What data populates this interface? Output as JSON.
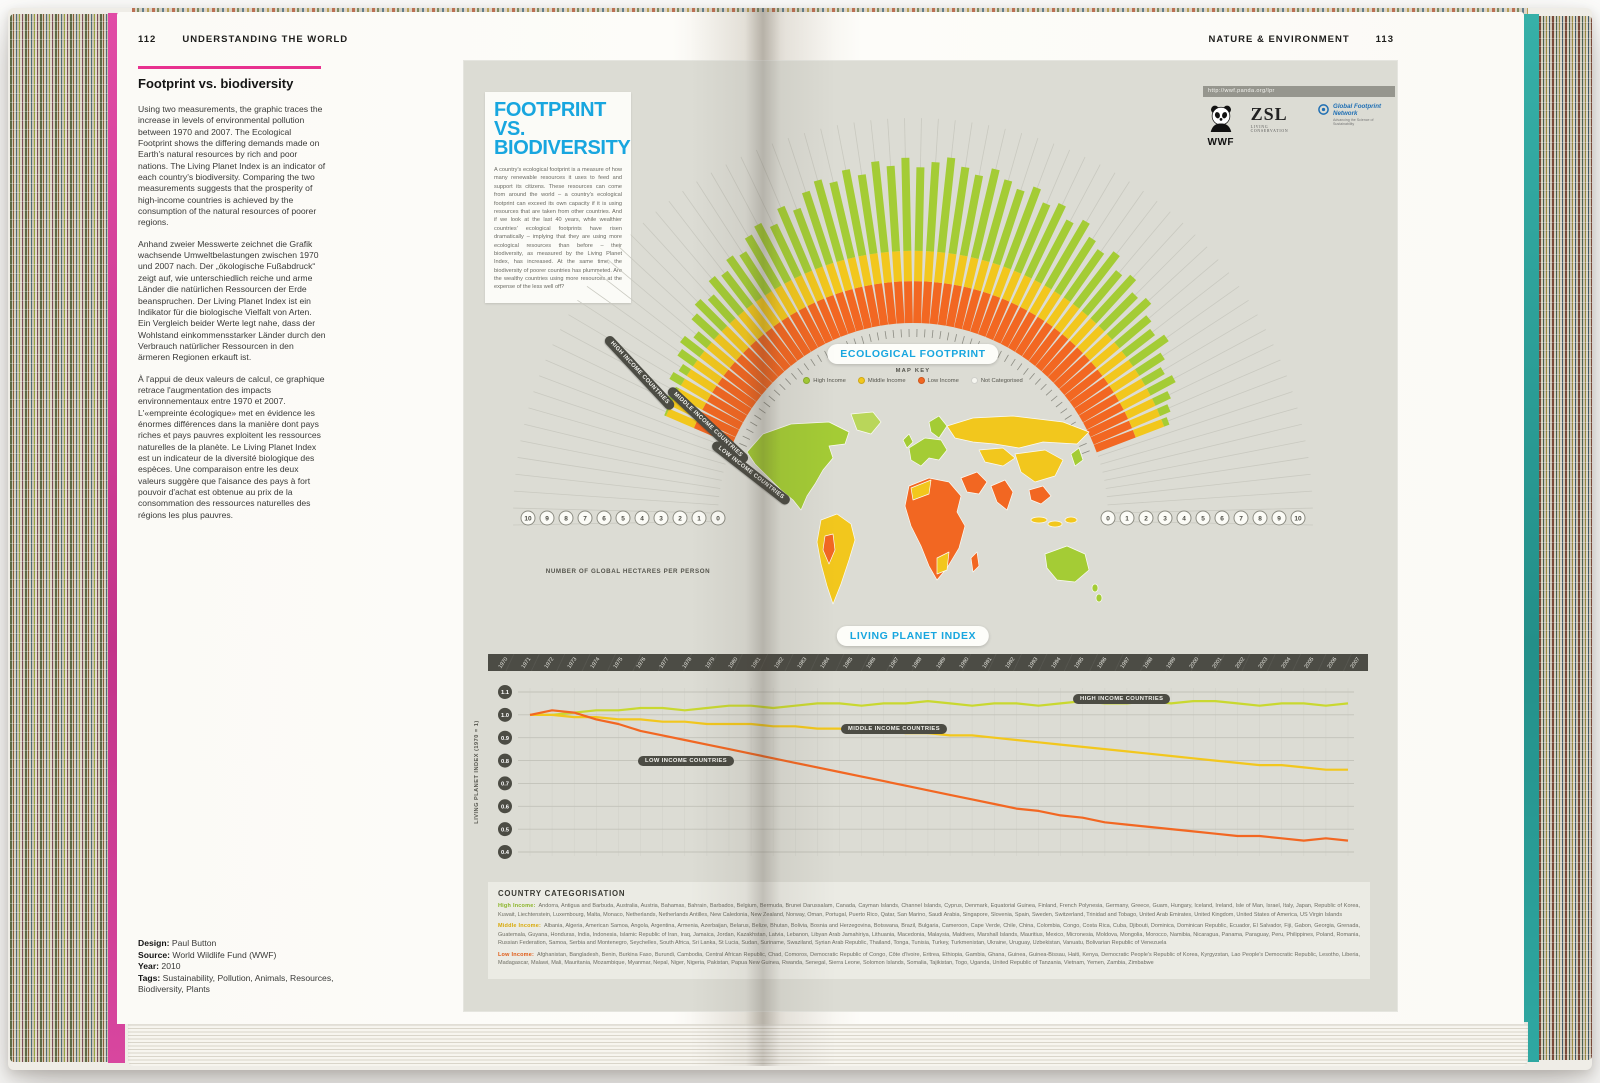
{
  "colors": {
    "accent_pink": "#e8318f",
    "accent_teal": "#2fa8a2",
    "cyan": "#18a6df",
    "high_income": "#a4cc35",
    "high_income_line": "#c9d830",
    "middle_income": "#f2c71d",
    "low_income": "#f26722",
    "panel_bg": "#dcdcd4",
    "dark_pill": "#4c4c44"
  },
  "left_page": {
    "page_number": "112",
    "running_head": "UNDERSTANDING THE WORLD",
    "title": "Footprint vs. biodiversity",
    "body_en": "Using two measurements, the graphic traces the increase in levels of environmental pollution between 1970 and 2007. The Ecological Footprint shows the differing demands made on Earth's natural resources by rich and poor nations. The Living Planet Index is an indicator of each country's biodiversity. Comparing the two measurements suggests that the prosperity of high-income countries is achieved by the consumption of the natural resources of poorer regions.",
    "body_de": "Anhand zweier Messwerte zeichnet die Grafik wachsende Umweltbelastungen zwischen 1970 und 2007 nach. Der „ökologische Fußabdruck“ zeigt auf, wie unterschiedlich reiche und arme Länder die natürlichen Ressourcen der Erde beanspruchen. Der Living Planet Index ist ein Indikator für die biologische Vielfalt von Arten. Ein Vergleich beider Werte legt nahe, dass der Wohlstand einkommensstarker Länder durch den Verbrauch natürlicher Ressourcen in den ärmeren Regionen erkauft ist.",
    "body_fr": "À l'appui de deux valeurs de calcul, ce graphique retrace l'augmentation des impacts environnementaux entre 1970 et 2007. L'«empreinte écologique» met en évidence les énormes différences dans la manière dont pays riches et pays pauvres exploitent les ressources naturelles de la planète. Le Living Planet Index est un indicateur de la diversité biologique des espèces. Une comparaison entre les deux valeurs suggère que l'aisance des pays à fort pouvoir d'achat est obtenue au prix de la consommation des ressources naturelles des régions les plus pauvres.",
    "credits": [
      {
        "label": "Design:",
        "value": "Paul Button"
      },
      {
        "label": "Source:",
        "value": "World Wildlife Fund (WWF)"
      },
      {
        "label": "Year:",
        "value": "2010"
      },
      {
        "label": "Tags:",
        "value": "Sustainability, Pollution, Animals, Resources, Biodiversity, Plants"
      }
    ]
  },
  "right_page": {
    "page_number": "113",
    "running_head": "NATURE & ENVIRONMENT"
  },
  "infographic": {
    "url_bar": "http://wwf.panda.org/lpr",
    "title_line1": "FOOTPRINT VS.",
    "title_line2": "BIODIVERSITY",
    "intro": "A country's ecological footprint is a measure of how many renewable resources it uses to feed and support its citizens. These resources can come from around the world – a country's ecological footprint can exceed its own capacity if it is using resources that are taken from other countries. And if we look at the last 40 years, while wealthier countries' ecological footprints have risen dramatically – implying that they are using more ecological resources than before – their biodiversity, as measured by the Living Planet Index, has increased. At the same time, the biodiversity of poorer countries has plummeted. Are the wealthy countries using more resources at the expense of the less well off?",
    "logos": {
      "wwf": "WWF",
      "zsl": "ZSL",
      "zsl_caption": "LIVING CONSERVATION",
      "gfn": "Global Footprint Network",
      "gfn_caption": "Advancing the Science of Sustainability"
    },
    "ecological_footprint_label": "ECOLOGICAL FOOTPRINT",
    "living_planet_label": "LIVING PLANET INDEX",
    "map_key": {
      "title": "MAP KEY",
      "items": [
        {
          "label": "High Income",
          "color": "#a4cc35"
        },
        {
          "label": "Middle Income",
          "color": "#f2c71d"
        },
        {
          "label": "Low Income",
          "color": "#f26722"
        },
        {
          "label": "Not Categorised",
          "color": "#f6f6f0"
        }
      ]
    },
    "arc_group_labels": [
      "HIGH INCOME COUNTRIES",
      "MIDDLE INCOME COUNTRIES",
      "LOW INCOME COUNTRIES"
    ],
    "hectares_axis_label": "NUMBER OF GLOBAL HECTARES PER PERSON",
    "categorisation": {
      "title": "COUNTRY CATEGORISATION",
      "groups": [
        {
          "label": "High Income:",
          "color": "#8ab427",
          "countries": "Andorra, Antigua and Barbuda, Australia, Austria, Bahamas, Bahrain, Barbados, Belgium, Bermuda, Brunei Darussalam, Canada, Cayman Islands, Channel Islands, Cyprus, Denmark, Equatorial Guinea, Finland, French Polynesia, Germany, Greece, Guam, Hungary, Iceland, Ireland, Isle of Man, Israel, Italy, Japan, Republic of Korea, Kuwait, Liechtenstein, Luxembourg, Malta, Monaco, Netherlands, Netherlands Antilles, New Caledonia, New Zealand, Norway, Oman, Portugal, Puerto Rico, Qatar, San Marino, Saudi Arabia, Singapore, Slovenia, Spain, Sweden, Switzerland, Trinidad and Tobago, United Arab Emirates, United Kingdom, United States of America, US Virgin Islands"
        },
        {
          "label": "Middle Income:",
          "color": "#d8a907",
          "countries": "Albania, Algeria, American Samoa, Angola, Argentina, Armenia, Azerbaijan, Belarus, Belize, Bhutan, Bolivia, Bosnia and Herzegovina, Botswana, Brazil, Bulgaria, Cameroon, Cape Verde, Chile, China, Colombia, Congo, Costa Rica, Cuba, Djibouti, Dominica, Dominican Republic, Ecuador, El Salvador, Fiji, Gabon, Georgia, Grenada, Guatemala, Guyana, Honduras, India, Indonesia, Islamic Republic of Iran, Iraq, Jamaica, Jordan, Kazakhstan, Latvia, Lebanon, Libyan Arab Jamahiriya, Lithuania, Macedonia, Malaysia, Maldives, Marshall Islands, Mauritius, Mexico, Micronesia, Moldova, Mongolia, Morocco, Namibia, Nicaragua, Panama, Paraguay, Peru, Philippines, Poland, Romania, Russian Federation, Samoa, Serbia and Montenegro, Seychelles, South Africa, Sri Lanka, St Lucia, Sudan, Suriname, Swaziland, Syrian Arab Republic, Thailand, Tonga, Tunisia, Turkey, Turkmenistan, Ukraine, Uruguay, Uzbekistan, Vanuatu, Bolivarian Republic of Venezuela"
        },
        {
          "label": "Low Income:",
          "color": "#e05a14",
          "countries": "Afghanistan, Bangladesh, Benin, Burkina Faso, Burundi, Cambodia, Central African Republic, Chad, Comoros, Democratic Republic of Congo, Côte d'Ivoire, Eritrea, Ethiopia, Gambia, Ghana, Guinea, Guinea-Bissau, Haiti, Kenya, Democratic People's Republic of Korea, Kyrgyzstan, Lao People's Democratic Republic, Lesotho, Liberia, Madagascar, Malawi, Mali, Mauritania, Mozambique, Myanmar, Nepal, Niger, Nigeria, Pakistan, Papua New Guinea, Rwanda, Senegal, Sierra Leone, Solomon Islands, Somalia, Tajikistan, Togo, Uganda, United Republic of Tanzania, Vietnam, Yemen, Zambia, Zimbabwe"
        }
      ]
    }
  },
  "chart_data": [
    {
      "type": "radial-bar",
      "title": "ECOLOGICAL FOOTPRINT",
      "units": "global hectares per person",
      "axis_range": [
        0,
        10
      ],
      "axis_ticks": [
        0,
        1,
        2,
        3,
        4,
        5,
        6,
        7,
        8,
        9,
        10
      ],
      "bands": [
        {
          "label": "Low Income",
          "range": [
            0,
            2.2
          ],
          "color": "#f26722"
        },
        {
          "label": "Middle Income",
          "range": [
            2.2,
            3.8
          ],
          "color": "#f2c71d"
        },
        {
          "label": "High Income",
          "range": [
            3.8,
            10
          ],
          "color": "#a4cc35"
        }
      ],
      "values": [
        null,
        null,
        null,
        null,
        null,
        null,
        null,
        null,
        null,
        null,
        3.9,
        4.2,
        4.0,
        4.5,
        4.3,
        4.8,
        5.1,
        4.7,
        5.4,
        5.8,
        5.5,
        6.2,
        6.0,
        6.5,
        6.3,
        6.9,
        7.2,
        6.8,
        7.5,
        7.1,
        7.8,
        8.2,
        7.9,
        8.4,
        8.0,
        8.6,
        8.3,
        8.7,
        8.2,
        8.5,
        8.8,
        8.4,
        8.1,
        8.6,
        8.2,
        7.9,
        8.3,
        7.7,
        8.0,
        7.4,
        7.8,
        7.2,
        6.9,
        7.3,
        6.6,
        6.9,
        6.3,
        6.6,
        6.0,
        5.7,
        6.1,
        5.4,
        5.0,
        5.3,
        4.7,
        4.4,
        4.1,
        null,
        null,
        null,
        null,
        null,
        null,
        null,
        null,
        null
      ]
    },
    {
      "type": "line",
      "title": "LIVING PLANET INDEX",
      "ylabel": "LIVING PLANET INDEX (1970 = 1)",
      "ylim": [
        0.4,
        1.1
      ],
      "yticks": [
        1.1,
        1.0,
        0.9,
        0.8,
        0.7,
        0.6,
        0.5,
        0.4
      ],
      "x": [
        1970,
        1971,
        1972,
        1973,
        1974,
        1975,
        1976,
        1977,
        1978,
        1979,
        1980,
        1981,
        1982,
        1983,
        1984,
        1985,
        1986,
        1987,
        1988,
        1989,
        1990,
        1991,
        1992,
        1993,
        1994,
        1995,
        1996,
        1997,
        1998,
        1999,
        2000,
        2001,
        2002,
        2003,
        2004,
        2005,
        2006,
        2007
      ],
      "series": [
        {
          "name": "HIGH INCOME COUNTRIES",
          "color": "#c9d830",
          "values": [
            1.0,
            1.0,
            1.01,
            1.02,
            1.02,
            1.03,
            1.03,
            1.02,
            1.03,
            1.04,
            1.04,
            1.03,
            1.04,
            1.05,
            1.05,
            1.04,
            1.05,
            1.05,
            1.06,
            1.05,
            1.04,
            1.05,
            1.05,
            1.04,
            1.05,
            1.06,
            1.05,
            1.05,
            1.06,
            1.05,
            1.06,
            1.06,
            1.05,
            1.04,
            1.05,
            1.05,
            1.04,
            1.05
          ]
        },
        {
          "name": "MIDDLE INCOME COUNTRIES",
          "color": "#f2c71d",
          "values": [
            1.0,
            1.0,
            0.99,
            0.99,
            0.98,
            0.98,
            0.97,
            0.97,
            0.96,
            0.96,
            0.96,
            0.95,
            0.95,
            0.94,
            0.94,
            0.93,
            0.93,
            0.92,
            0.92,
            0.91,
            0.91,
            0.9,
            0.89,
            0.88,
            0.87,
            0.86,
            0.85,
            0.84,
            0.83,
            0.82,
            0.81,
            0.8,
            0.79,
            0.78,
            0.78,
            0.77,
            0.76,
            0.76
          ]
        },
        {
          "name": "LOW INCOME COUNTRIES",
          "color": "#f26722",
          "values": [
            1.0,
            1.02,
            1.01,
            0.98,
            0.96,
            0.93,
            0.91,
            0.89,
            0.87,
            0.85,
            0.83,
            0.81,
            0.79,
            0.77,
            0.75,
            0.73,
            0.71,
            0.69,
            0.67,
            0.65,
            0.63,
            0.61,
            0.59,
            0.58,
            0.56,
            0.55,
            0.53,
            0.52,
            0.51,
            0.5,
            0.49,
            0.48,
            0.47,
            0.47,
            0.46,
            0.45,
            0.46,
            0.45
          ]
        }
      ]
    }
  ]
}
